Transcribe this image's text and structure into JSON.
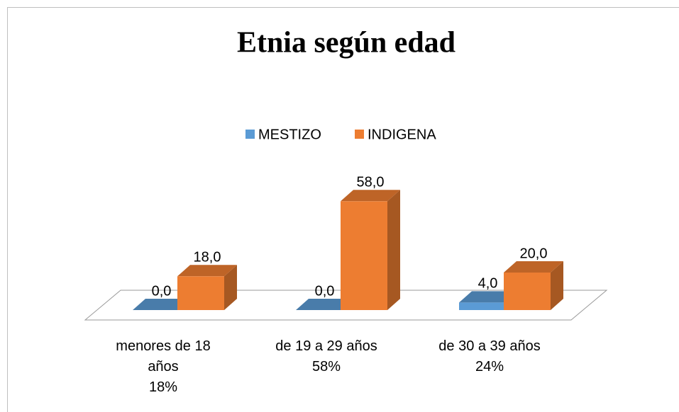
{
  "chart_data": {
    "type": "bar3d",
    "title": "Etnia según edad",
    "categories": [
      "menores de 18 años\n18%",
      "de 19 a 29 años\n58%",
      "de 30 a 39 años\n24%"
    ],
    "series": [
      {
        "name": "MESTIZO",
        "color": "#5b9bd5",
        "values": [
          0,
          0,
          4
        ],
        "value_labels": [
          "0,0",
          "0,0",
          "4,0"
        ]
      },
      {
        "name": "INDIGENA",
        "color": "#ed7d31",
        "values": [
          18,
          58,
          20
        ],
        "value_labels": [
          "18,0",
          "58,0",
          "20,0"
        ]
      }
    ],
    "legend": "top"
  }
}
